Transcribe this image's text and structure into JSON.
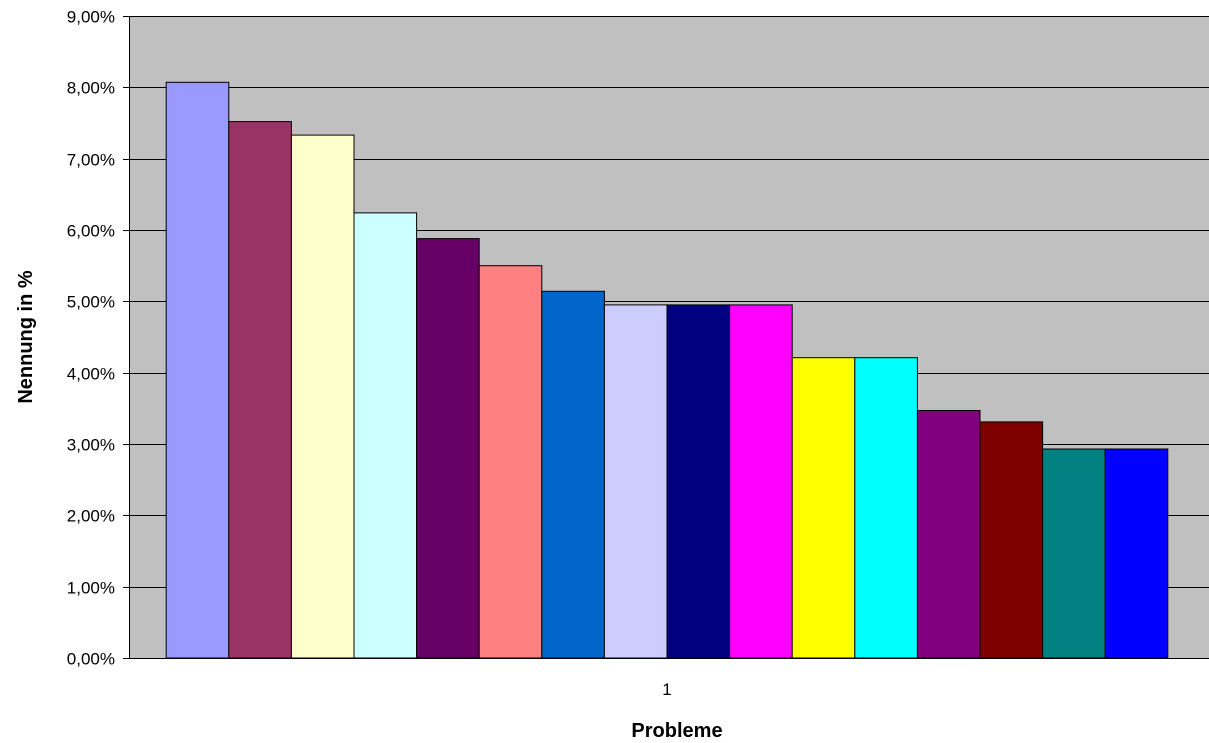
{
  "chart_data": {
    "type": "bar",
    "title": "",
    "xlabel": "Probleme",
    "ylabel": "Nennung in %",
    "categories": [
      "1"
    ],
    "ylim": [
      0,
      0.09
    ],
    "y_ticks": [
      0,
      0.01,
      0.02,
      0.03,
      0.04,
      0.05,
      0.06,
      0.07,
      0.08,
      0.09
    ],
    "y_tick_labels": [
      "0,00%",
      "1,00%",
      "2,00%",
      "3,00%",
      "4,00%",
      "5,00%",
      "6,00%",
      "7,00%",
      "8,00%",
      "9,00%"
    ],
    "grid": true,
    "legend": "none",
    "plot_background": "#C0C0C0",
    "series": [
      {
        "values": [
          0.0807
        ],
        "color": "#9999FF"
      },
      {
        "values": [
          0.0752
        ],
        "color": "#993366"
      },
      {
        "values": [
          0.0733
        ],
        "color": "#FFFFCC"
      },
      {
        "values": [
          0.0624
        ],
        "color": "#CCFFFF"
      },
      {
        "values": [
          0.0588
        ],
        "color": "#660066"
      },
      {
        "values": [
          0.055
        ],
        "color": "#FF8080"
      },
      {
        "values": [
          0.0514
        ],
        "color": "#0066CC"
      },
      {
        "values": [
          0.0495
        ],
        "color": "#CCCCFF"
      },
      {
        "values": [
          0.0495
        ],
        "color": "#000080"
      },
      {
        "values": [
          0.0495
        ],
        "color": "#FF00FF"
      },
      {
        "values": [
          0.0421
        ],
        "color": "#FFFF00"
      },
      {
        "values": [
          0.0421
        ],
        "color": "#00FFFF"
      },
      {
        "values": [
          0.0347
        ],
        "color": "#800080"
      },
      {
        "values": [
          0.0331
        ],
        "color": "#800000"
      },
      {
        "values": [
          0.0293
        ],
        "color": "#008080"
      },
      {
        "values": [
          0.0293
        ],
        "color": "#0000FF"
      }
    ]
  }
}
